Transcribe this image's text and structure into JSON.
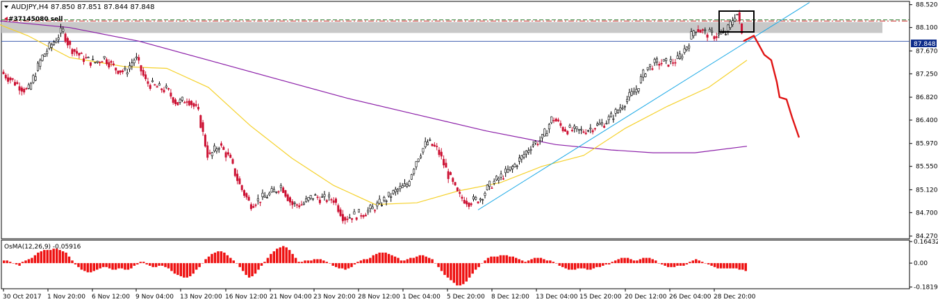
{
  "header": {
    "symbol_line": "AUDJPY,H4  87.850 87.851 87.844 87.848",
    "order_label": "#37145080 sell",
    "current_price_label": "87.848",
    "indicator_label": "OsMA(12,26,9) -0.05916"
  },
  "colors": {
    "bull_candle": "#000000",
    "bear_candle": "#cc1133",
    "ma_fast": "#f5d12a",
    "ma_slow": "#8b1ea8",
    "trendline": "#1aa9e6",
    "forecast": "#e01414",
    "resistance_zone": "#c8c8c8",
    "resistance_line": "#cc2222",
    "dashed_level": "#2e7d32",
    "osma_bars": "#ee1111",
    "price_marker": "#0d2c8a"
  },
  "chart_data": [
    {
      "type": "candlestick",
      "title": "AUDJPY,H4",
      "ohlc_current": {
        "open": 87.85,
        "high": 87.851,
        "low": 87.844,
        "close": 87.848
      },
      "yticks": [
        88.52,
        88.1,
        87.67,
        87.25,
        86.82,
        86.4,
        85.97,
        85.55,
        85.12,
        84.7,
        84.27
      ],
      "ylim": [
        84.22,
        88.58
      ],
      "xticks": [
        "30 Oct 2017",
        "1 Nov 20:00",
        "6 Nov 12:00",
        "9 Nov 04:00",
        "13 Nov 20:00",
        "16 Nov 12:00",
        "21 Nov 04:00",
        "23 Nov 20:00",
        "28 Nov 12:00",
        "1 Dec 04:00",
        "5 Dec 20:00",
        "8 Dec 12:00",
        "13 Dec 04:00",
        "15 Dec 20:00",
        "20 Dec 12:00",
        "26 Dec 04:00",
        "28 Dec 20:00"
      ],
      "current_price": 87.848,
      "levels": {
        "resistance_zone": [
          88.0,
          88.2
        ],
        "resistance_line": 88.22,
        "dashed_level": 88.24
      },
      "price_path": [
        [
          0,
          87.3
        ],
        [
          20,
          87.1
        ],
        [
          40,
          86.92
        ],
        [
          60,
          87.55
        ],
        [
          75,
          87.8
        ],
        [
          90,
          88.05
        ],
        [
          100,
          87.75
        ],
        [
          118,
          87.55
        ],
        [
          135,
          87.45
        ],
        [
          150,
          87.55
        ],
        [
          165,
          87.35
        ],
        [
          180,
          87.28
        ],
        [
          195,
          87.55
        ],
        [
          210,
          87.1
        ],
        [
          225,
          87.0
        ],
        [
          240,
          86.95
        ],
        [
          255,
          86.7
        ],
        [
          270,
          86.8
        ],
        [
          285,
          86.55
        ],
        [
          300,
          85.7
        ],
        [
          315,
          85.95
        ],
        [
          330,
          85.7
        ],
        [
          345,
          85.2
        ],
        [
          360,
          84.85
        ],
        [
          375,
          84.95
        ],
        [
          390,
          85.05
        ],
        [
          405,
          85.2
        ],
        [
          420,
          84.85
        ],
        [
          435,
          84.85
        ],
        [
          450,
          85.0
        ],
        [
          465,
          84.95
        ],
        [
          480,
          84.95
        ],
        [
          495,
          84.6
        ],
        [
          510,
          84.65
        ],
        [
          525,
          84.7
        ],
        [
          540,
          84.8
        ],
        [
          555,
          84.95
        ],
        [
          570,
          85.1
        ],
        [
          585,
          85.2
        ],
        [
          600,
          85.7
        ],
        [
          615,
          86.0
        ],
        [
          630,
          85.85
        ],
        [
          645,
          85.4
        ],
        [
          660,
          85.0
        ],
        [
          675,
          84.9
        ],
        [
          690,
          84.95
        ],
        [
          705,
          85.2
        ],
        [
          720,
          85.35
        ],
        [
          735,
          85.5
        ],
        [
          750,
          85.7
        ],
        [
          765,
          85.95
        ],
        [
          780,
          86.05
        ],
        [
          795,
          86.45
        ],
        [
          810,
          86.25
        ],
        [
          825,
          86.2
        ],
        [
          840,
          86.2
        ],
        [
          855,
          86.28
        ],
        [
          870,
          86.35
        ],
        [
          885,
          86.52
        ],
        [
          900,
          86.75
        ],
        [
          915,
          86.95
        ],
        [
          930,
          87.35
        ],
        [
          945,
          87.45
        ],
        [
          960,
          87.45
        ],
        [
          975,
          87.5
        ],
        [
          990,
          87.8
        ],
        [
          1000,
          88.1
        ],
        [
          1015,
          88.0
        ],
        [
          1030,
          87.95
        ],
        [
          1045,
          88.0
        ],
        [
          1060,
          88.4
        ],
        [
          1070,
          87.848
        ]
      ],
      "ma_fast_path": [
        [
          0,
          88.15
        ],
        [
          40,
          87.95
        ],
        [
          100,
          87.55
        ],
        [
          180,
          87.38
        ],
        [
          240,
          87.35
        ],
        [
          300,
          87.0
        ],
        [
          360,
          86.3
        ],
        [
          420,
          85.7
        ],
        [
          480,
          85.2
        ],
        [
          540,
          84.85
        ],
        [
          600,
          84.88
        ],
        [
          660,
          85.1
        ],
        [
          720,
          85.25
        ],
        [
          780,
          85.55
        ],
        [
          840,
          85.75
        ],
        [
          900,
          86.25
        ],
        [
          960,
          86.65
        ],
        [
          1020,
          87.0
        ],
        [
          1075,
          87.5
        ]
      ],
      "ma_slow_path": [
        [
          0,
          88.22
        ],
        [
          100,
          88.1
        ],
        [
          200,
          87.85
        ],
        [
          300,
          87.5
        ],
        [
          400,
          87.15
        ],
        [
          500,
          86.8
        ],
        [
          600,
          86.5
        ],
        [
          700,
          86.2
        ],
        [
          800,
          85.95
        ],
        [
          880,
          85.85
        ],
        [
          940,
          85.8
        ],
        [
          1000,
          85.8
        ],
        [
          1075,
          85.92
        ]
      ],
      "trendline": [
        [
          688,
          84.75
        ],
        [
          1165,
          88.56
        ]
      ],
      "forecast_path": [
        [
          1070,
          87.85
        ],
        [
          1085,
          87.95
        ],
        [
          1100,
          87.6
        ],
        [
          1110,
          87.5
        ],
        [
          1118,
          87.1
        ],
        [
          1122,
          86.82
        ],
        [
          1132,
          86.78
        ],
        [
          1140,
          86.45
        ],
        [
          1150,
          86.08
        ]
      ]
    },
    {
      "type": "bar",
      "title": "OsMA(12,26,9) -0.05916",
      "yticks": [
        0.16432,
        0.0,
        -0.18194
      ],
      "ylim": [
        -0.195,
        0.175
      ],
      "values": [
        0.02,
        0.02,
        0.01,
        0.0,
        -0.01,
        -0.02,
        0.01,
        0.02,
        0.03,
        0.04,
        0.06,
        0.08,
        0.09,
        0.1,
        0.1,
        0.1,
        0.11,
        0.11,
        0.1,
        0.09,
        0.08,
        0.05,
        0.02,
        -0.01,
        -0.03,
        -0.05,
        -0.06,
        -0.07,
        -0.07,
        -0.06,
        -0.05,
        -0.04,
        -0.03,
        -0.03,
        -0.04,
        -0.05,
        -0.05,
        -0.04,
        -0.04,
        -0.05,
        -0.05,
        -0.04,
        -0.02,
        -0.01,
        0.01,
        0.01,
        -0.01,
        -0.02,
        -0.03,
        -0.03,
        -0.02,
        -0.02,
        -0.03,
        -0.04,
        -0.06,
        -0.08,
        -0.09,
        -0.1,
        -0.11,
        -0.11,
        -0.1,
        -0.08,
        -0.05,
        -0.03,
        0.0,
        0.03,
        0.05,
        0.07,
        0.08,
        0.09,
        0.09,
        0.08,
        0.06,
        0.04,
        0.02,
        0.0,
        -0.03,
        -0.06,
        -0.09,
        -0.11,
        -0.1,
        -0.08,
        -0.05,
        -0.02,
        0.01,
        0.04,
        0.07,
        0.09,
        0.11,
        0.12,
        0.13,
        0.12,
        0.1,
        0.07,
        0.04,
        0.01,
        0.01,
        0.02,
        0.02,
        0.02,
        0.03,
        0.03,
        0.03,
        0.02,
        0.01,
        0.0,
        -0.02,
        -0.03,
        -0.04,
        -0.04,
        -0.05,
        -0.04,
        -0.03,
        -0.01,
        0.01,
        0.02,
        0.03,
        0.03,
        0.04,
        0.06,
        0.07,
        0.08,
        0.08,
        0.08,
        0.07,
        0.06,
        0.05,
        0.04,
        0.02,
        0.02,
        0.03,
        0.04,
        0.04,
        0.05,
        0.06,
        0.06,
        0.05,
        0.04,
        0.03,
        0.0,
        -0.03,
        -0.06,
        -0.09,
        -0.11,
        -0.13,
        -0.15,
        -0.17,
        -0.17,
        -0.16,
        -0.14,
        -0.11,
        -0.08,
        -0.05,
        -0.03,
        0.0,
        0.02,
        0.04,
        0.05,
        0.05,
        0.05,
        0.06,
        0.06,
        0.06,
        0.05,
        0.05,
        0.04,
        0.03,
        0.02,
        0.01,
        0.02,
        0.03,
        0.04,
        0.04,
        0.04,
        0.03,
        0.02,
        0.02,
        0.01,
        0.0,
        -0.02,
        -0.03,
        -0.04,
        -0.05,
        -0.05,
        -0.05,
        -0.04,
        -0.04,
        -0.04,
        -0.05,
        -0.05,
        -0.04,
        -0.03,
        -0.03,
        -0.02,
        -0.01,
        -0.01,
        0.01,
        0.02,
        0.03,
        0.04,
        0.04,
        0.04,
        0.03,
        0.02,
        0.02,
        0.03,
        0.04,
        0.04,
        0.04,
        0.03,
        0.02,
        0.0,
        -0.01,
        -0.02,
        -0.03,
        -0.03,
        -0.03,
        -0.02,
        -0.02,
        -0.02,
        -0.01,
        0.01,
        0.02,
        0.03,
        0.02,
        0.01,
        0.0,
        -0.01,
        -0.02,
        -0.03,
        -0.04,
        -0.04,
        -0.04,
        -0.04,
        -0.04,
        -0.04,
        -0.04,
        -0.05,
        -0.05,
        -0.06
      ]
    }
  ]
}
